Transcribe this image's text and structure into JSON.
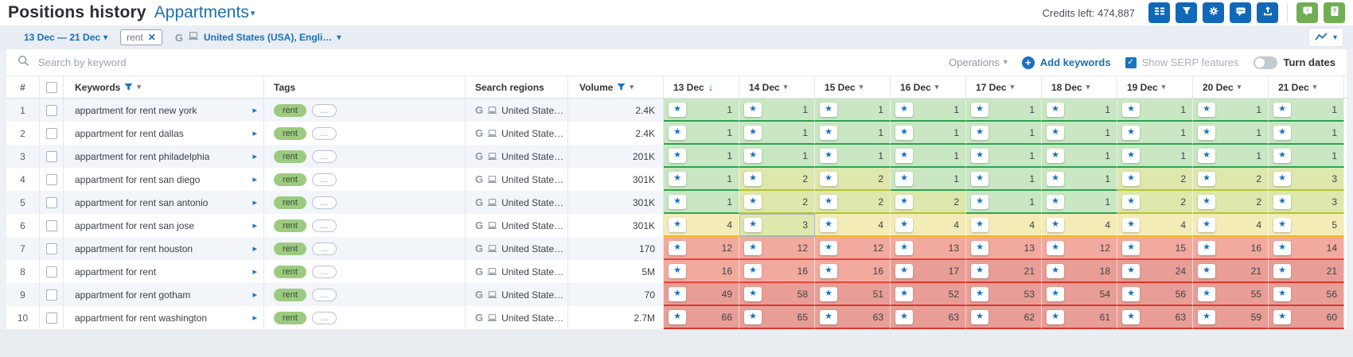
{
  "top_bar": {
    "title": "Positions history",
    "project": "Appartments",
    "credits": "Credits left: 474,887",
    "toolbar_buttons": [
      "columns-button",
      "filter-button",
      "settings-button",
      "comments-button",
      "export-button",
      "feedback-button",
      "help-button"
    ]
  },
  "filter_bar": {
    "date_range": "13 Dec — 21 Dec",
    "tag_chip": "rent",
    "region": "United States (USA), Engli…"
  },
  "search_bar": {
    "placeholder": "Search by keyword",
    "operations": "Operations",
    "add_keywords": "Add keywords",
    "show_serp_features": "Show SERP features",
    "show_serp_checked": true,
    "turn_dates": "Turn dates",
    "turn_dates_on": false
  },
  "table": {
    "headers": {
      "index": "#",
      "keywords": "Keywords",
      "tags": "Tags",
      "regions": "Search regions",
      "volume": "Volume"
    },
    "date_columns": [
      "13 Dec",
      "14 Dec",
      "15 Dec",
      "16 Dec",
      "17 Dec",
      "18 Dec",
      "19 Dec",
      "20 Dec",
      "21 Dec"
    ],
    "sorted_date": "13 Dec",
    "more_tags_label": "...",
    "region_cell_text": "United State…",
    "hovered_cell": {
      "row": 6,
      "date": "14 Dec"
    },
    "rows": [
      {
        "index": 1,
        "keyword": "appartment for rent new york",
        "tags": [
          "rent"
        ],
        "volume": "2.4K",
        "positions": [
          1,
          1,
          1,
          1,
          1,
          1,
          1,
          1,
          1
        ]
      },
      {
        "index": 2,
        "keyword": "appartment for rent dallas",
        "tags": [
          "rent"
        ],
        "volume": "2.4K",
        "positions": [
          1,
          1,
          1,
          1,
          1,
          1,
          1,
          1,
          1
        ]
      },
      {
        "index": 3,
        "keyword": "appartment for rent philadelphia",
        "tags": [
          "rent"
        ],
        "volume": "201K",
        "positions": [
          1,
          1,
          1,
          1,
          1,
          1,
          1,
          1,
          1
        ]
      },
      {
        "index": 4,
        "keyword": "appartment for rent san diego",
        "tags": [
          "rent"
        ],
        "volume": "301K",
        "positions": [
          1,
          2,
          2,
          1,
          1,
          1,
          2,
          2,
          3
        ]
      },
      {
        "index": 5,
        "keyword": "appartment for rent san antonio",
        "tags": [
          "rent"
        ],
        "volume": "301K",
        "positions": [
          1,
          2,
          2,
          2,
          1,
          1,
          2,
          2,
          3
        ]
      },
      {
        "index": 6,
        "keyword": "appartment for rent san jose",
        "tags": [
          "rent"
        ],
        "volume": "301K",
        "positions": [
          4,
          3,
          4,
          4,
          4,
          4,
          4,
          4,
          5
        ]
      },
      {
        "index": 7,
        "keyword": "appartment for rent houston",
        "tags": [
          "rent"
        ],
        "volume": "170",
        "positions": [
          12,
          12,
          12,
          13,
          13,
          12,
          15,
          16,
          14
        ]
      },
      {
        "index": 8,
        "keyword": "appartment for rent",
        "tags": [
          "rent"
        ],
        "volume": "5M",
        "positions": [
          16,
          16,
          16,
          17,
          21,
          18,
          24,
          21,
          21
        ]
      },
      {
        "index": 9,
        "keyword": "appartment for rent gotham",
        "tags": [
          "rent"
        ],
        "volume": "70",
        "positions": [
          49,
          58,
          51,
          52,
          53,
          54,
          56,
          55,
          56
        ]
      },
      {
        "index": 10,
        "keyword": "appartment for rent washington",
        "tags": [
          "rent"
        ],
        "volume": "2.7M",
        "positions": [
          66,
          65,
          63,
          63,
          62,
          61,
          63,
          59,
          60
        ]
      }
    ]
  },
  "colors": {
    "accent_blue": "#1a73c2",
    "link_blue": "#1c6fb4",
    "toolbar_button_blue": "#1168b8",
    "toolbar_button_green": "#70ae52",
    "tag_pill_green": "#9ccb80",
    "pos_green_bg": "#c9e7c2",
    "pos_green_border": "#2aa351",
    "pos_yellowgreen_bg": "#dee7ac",
    "pos_yellowgreen_border": "#b5c430",
    "pos_yellow_bg": "#f4ecb6",
    "pos_yellow_border": "#f6b41d",
    "pos_red_bg": "#f2a99e",
    "pos_red_border": "#e8443a",
    "pos_darkred_bg": "#e89e96",
    "pos_darkred_border": "#de352c"
  },
  "icons": {
    "columns-icon": "two-column row list",
    "funnel-icon": "filter funnel",
    "gear-icon": "settings gear",
    "chat-icon": "speech bubble with dots",
    "upload-icon": "tray with up arrow",
    "feedback-icon": "speech bubble with !",
    "help-icon": "book with ?",
    "search-icon": "magnifier",
    "trend-icon": "zigzag chart line",
    "serp-star-icon": "★",
    "sort-desc-icon": "↓",
    "caret-down-icon": "▾",
    "expand-right-icon": "▸",
    "google-g-icon": "G",
    "desktop-icon": "laptop",
    "close-icon": "✕",
    "plus-icon": "+"
  }
}
